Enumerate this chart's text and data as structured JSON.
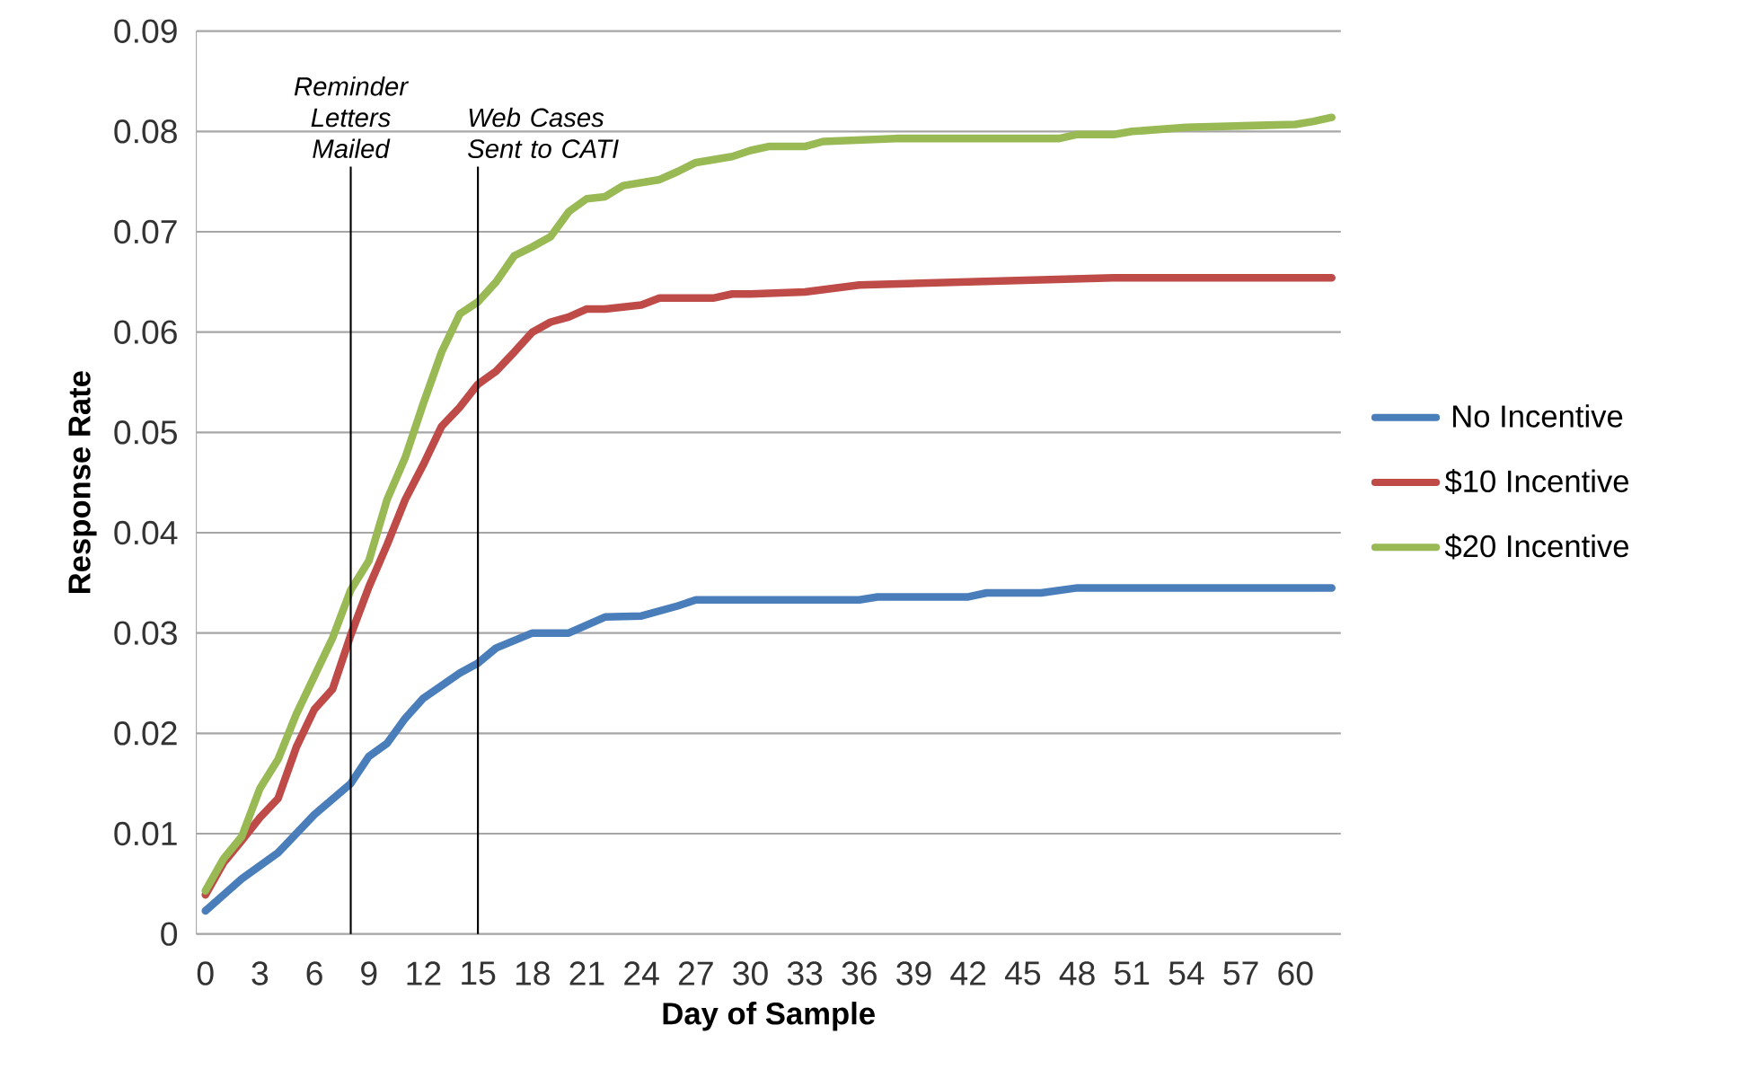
{
  "chart_data": {
    "type": "line",
    "xlabel": "Day of Sample",
    "ylabel": "Response Rate",
    "xlim": [
      -0.5,
      62.5
    ],
    "ylim": [
      0,
      0.09
    ],
    "xticks": [
      0,
      3,
      6,
      9,
      12,
      15,
      18,
      21,
      24,
      27,
      30,
      33,
      36,
      39,
      42,
      45,
      48,
      51,
      54,
      57,
      60
    ],
    "yticks": [
      0,
      0.01,
      0.02,
      0.03,
      0.04,
      0.05,
      0.06,
      0.07,
      0.08,
      0.09
    ],
    "grid": "y",
    "legend": "right",
    "marker": "none",
    "line_style": "solid",
    "series": [
      {
        "name": "No Incentive",
        "color": "#4a7ebb",
        "x": [
          0,
          2,
          4,
          6,
          8,
          9,
          10,
          11,
          12,
          14,
          15,
          16,
          18,
          20,
          22,
          24,
          26,
          27,
          36,
          37,
          42,
          43,
          46,
          48,
          62
        ],
        "values": [
          0.0023,
          0.0055,
          0.0081,
          0.0119,
          0.015,
          0.0177,
          0.019,
          0.0215,
          0.0235,
          0.026,
          0.027,
          0.0285,
          0.03,
          0.03,
          0.0316,
          0.0317,
          0.0327,
          0.0333,
          0.0333,
          0.0336,
          0.0336,
          0.034,
          0.034,
          0.0345,
          0.0345
        ]
      },
      {
        "name": "$10 Incentive",
        "color": "#be4b48",
        "x": [
          0,
          1,
          2,
          3,
          4,
          5,
          6,
          7,
          8,
          9,
          10,
          11,
          12,
          13,
          14,
          15,
          16,
          17,
          18,
          19,
          20,
          21,
          22,
          24,
          25,
          28,
          29,
          30,
          33,
          36,
          42,
          50,
          62
        ],
        "values": [
          0.0039,
          0.0071,
          0.0093,
          0.0116,
          0.0135,
          0.0186,
          0.0224,
          0.0244,
          0.0298,
          0.0346,
          0.0388,
          0.0433,
          0.0468,
          0.0506,
          0.0525,
          0.0548,
          0.0561,
          0.058,
          0.06,
          0.061,
          0.0615,
          0.0623,
          0.0623,
          0.0627,
          0.0634,
          0.0634,
          0.0638,
          0.0638,
          0.064,
          0.0647,
          0.065,
          0.0654,
          0.0654
        ]
      },
      {
        "name": "$20 Incentive",
        "color": "#98b954",
        "x": [
          0,
          1,
          2,
          3,
          4,
          5,
          6,
          7,
          8,
          9,
          10,
          11,
          12,
          13,
          14,
          15,
          16,
          17,
          18,
          19,
          20,
          21,
          22,
          23,
          25,
          26,
          27,
          29,
          30,
          31,
          33,
          34,
          38,
          47,
          48,
          50,
          51,
          54,
          58,
          60,
          61,
          62
        ],
        "values": [
          0.0043,
          0.0075,
          0.0097,
          0.0145,
          0.0174,
          0.0219,
          0.0257,
          0.0295,
          0.0343,
          0.0372,
          0.0433,
          0.0475,
          0.0529,
          0.058,
          0.0618,
          0.063,
          0.065,
          0.0676,
          0.0685,
          0.0695,
          0.072,
          0.0733,
          0.0735,
          0.0746,
          0.0752,
          0.076,
          0.0769,
          0.0775,
          0.0781,
          0.0785,
          0.0785,
          0.079,
          0.0793,
          0.0793,
          0.0797,
          0.0797,
          0.08,
          0.0804,
          0.0806,
          0.0807,
          0.081,
          0.0814
        ]
      }
    ],
    "ref_lines": [
      {
        "axis": "x",
        "value": 8,
        "label": "Reminder Letters Mailed",
        "color": "#000000"
      },
      {
        "axis": "x",
        "value": 15,
        "label": "Web Cases Sent to CATI",
        "color": "#000000"
      }
    ]
  }
}
